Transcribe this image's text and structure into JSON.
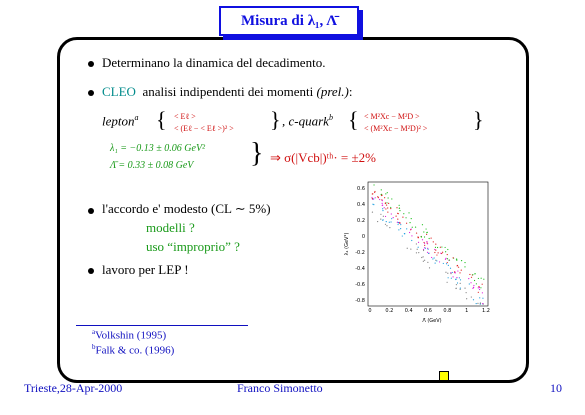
{
  "header": {
    "title": "Misura di λ₁, Λ̄"
  },
  "bullets": [
    {
      "text": "Determinano la dinamica del decadimento."
    },
    {
      "cleo": "CLEO",
      "text": "analisi indipendenti dei momenti",
      "prel": "(prel.)",
      "colon": ":"
    },
    {
      "text": "l'accordo e' modesto (CL ∼ 5%)",
      "sub": [
        "modelli ?",
        "uso “improprio” ?"
      ]
    },
    {
      "text": "lavoro per LEP !"
    }
  ],
  "formula": {
    "lepton": "lepton",
    "lepton_sup": "a",
    "lepton_top": "< Eℓ >",
    "lepton_bot": "< (Eℓ − < Eℓ >)² >",
    "cquark": ", c-quark",
    "cquark_sup": "b",
    "cquark_top": "< M²Xc − M²D >",
    "cquark_bot": "< (M²Xc − M²D)² >"
  },
  "results": {
    "lambda1": "λ₁ = −0.13 ± 0.06 GeV²",
    "lambdabar": "Λ̄ = 0.33 ± 0.08 GeV",
    "implication": "⇒ σ(|Vcb|)ᵗʰ· = ±2%"
  },
  "inset": {
    "xlabel": "Λ̄ (GeV)",
    "ylabel": "λ₁ (GeV²)",
    "xticks": [
      "0",
      "0.2",
      "0.4",
      "0.6",
      "0.8",
      "1",
      "1.2"
    ],
    "yticks": [
      "0.6",
      "0.4",
      "0.2",
      "0",
      "-0.2",
      "-0.4",
      "-0.6",
      "-0.8"
    ]
  },
  "footnotes": [
    "Volkshin (1995)",
    "Falk & co. (1996)"
  ],
  "footnote_marks": [
    "a",
    "b"
  ],
  "footer": {
    "place_date": "Trieste,28-Apr-2000",
    "author": "Franco Simonetto",
    "page": "10"
  }
}
